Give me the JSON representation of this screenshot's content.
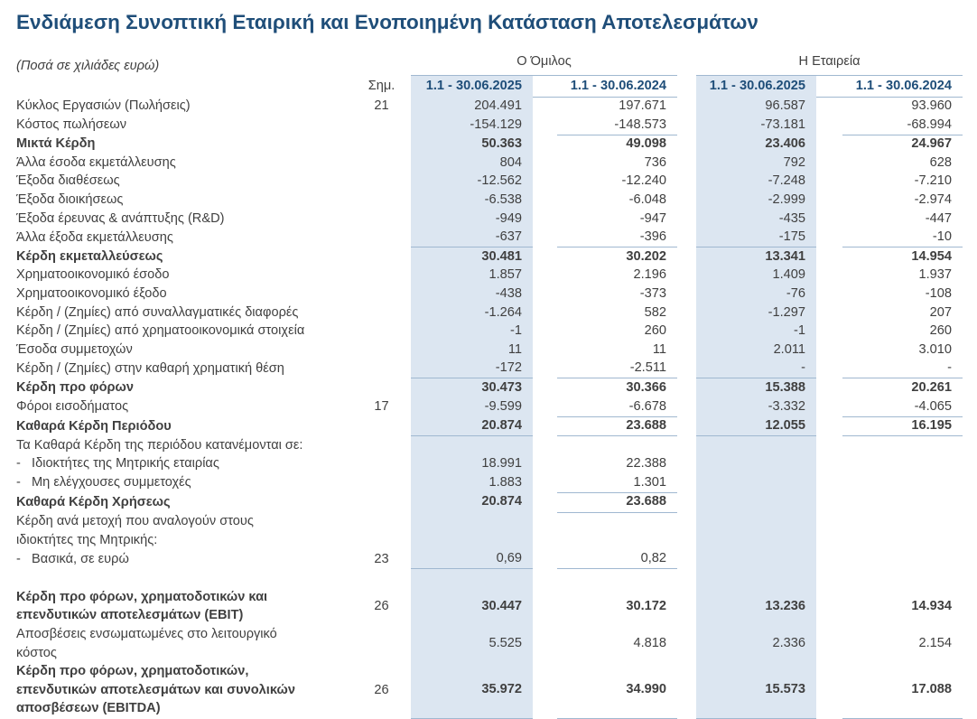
{
  "title": "Ενδιάμεση Συνοπτική Εταιρική και Ενοποιημένη Κατάσταση Αποτελεσμάτων",
  "subtitle": "(Ποσά σε χιλιάδες ευρώ)",
  "colors": {
    "title_navy": "#1F4E79",
    "column_fill_2025": "#DCE6F1",
    "rule_line": "#A0B8D0",
    "body_text": "#404040"
  },
  "table": {
    "group_label": "Ο Όμιλος",
    "company_label": "Η Εταιρεία",
    "header": {
      "note": "Σημ.",
      "group_2025": "1.1 - 30.06.2025",
      "group_2024": "1.1 - 30.06.2024",
      "company_2025": "1.1 - 30.06.2025",
      "company_2024": "1.1 - 30.06.2024"
    },
    "rows": [
      {
        "label": "Κύκλος Εργασιών (Πωλήσεις)",
        "note": "21",
        "values": [
          "204.491",
          "197.671",
          "96.587",
          "93.960"
        ]
      },
      {
        "label": "Κόστος πωλήσεων",
        "values": [
          "-154.129",
          "-148.573",
          "-73.181",
          "-68.994"
        ],
        "rule": "all"
      },
      {
        "label": "Μικτά Κέρδη",
        "bold": true,
        "values": [
          "50.363",
          "49.098",
          "23.406",
          "24.967"
        ]
      },
      {
        "label": "Άλλα έσοδα εκμετάλλευσης",
        "values": [
          "804",
          "736",
          "792",
          "628"
        ]
      },
      {
        "label": "Έξοδα διαθέσεως",
        "values": [
          "-12.562",
          "-12.240",
          "-7.248",
          "-7.210"
        ]
      },
      {
        "label": "Έξοδα διοικήσεως",
        "values": [
          "-6.538",
          "-6.048",
          "-2.999",
          "-2.974"
        ]
      },
      {
        "label": "Έξοδα έρευνας & ανάπτυξης (R&D)",
        "values": [
          "-949",
          "-947",
          "-435",
          "-447"
        ]
      },
      {
        "label": "Άλλα έξοδα εκμετάλλευσης",
        "values": [
          "-637",
          "-396",
          "-175",
          "-10"
        ],
        "rule": "all"
      },
      {
        "label": "Κέρδη εκμεταλλεύσεως",
        "bold": true,
        "values": [
          "30.481",
          "30.202",
          "13.341",
          "14.954"
        ]
      },
      {
        "label": "Χρηματοοικονομικό έσοδο",
        "values": [
          "1.857",
          "2.196",
          "1.409",
          "1.937"
        ]
      },
      {
        "label": "Χρηματοοικονομικό έξοδο",
        "values": [
          "-438",
          "-373",
          "-76",
          "-108"
        ]
      },
      {
        "label": "Κέρδη / (Ζημίες) από συναλλαγματικές διαφορές",
        "values": [
          "-1.264",
          "582",
          "-1.297",
          "207"
        ]
      },
      {
        "label": "Κέρδη / (Ζημίες) από χρηματοοικονομικά στοιχεία",
        "values": [
          "-1",
          "260",
          "-1",
          "260"
        ]
      },
      {
        "label": "Έσοδα συμμετοχών",
        "values": [
          "11",
          "11",
          "2.011",
          "3.010"
        ]
      },
      {
        "label": "Κέρδη / (Ζημίες) στην καθαρή χρηματική θέση",
        "values": [
          "-172",
          "-2.511",
          "-",
          "-"
        ],
        "rule": "all"
      },
      {
        "label": "Κέρδη προ φόρων",
        "bold": true,
        "values": [
          "30.473",
          "30.366",
          "15.388",
          "20.261"
        ]
      },
      {
        "label": "Φόροι εισοδήματος",
        "note": "17",
        "values": [
          "-9.599",
          "-6.678",
          "-3.332",
          "-4.065"
        ],
        "rule": "all"
      },
      {
        "label": "Καθαρά Κέρδη Περιόδου",
        "bold": true,
        "values": [
          "20.874",
          "23.688",
          "12.055",
          "16.195"
        ],
        "rule": "all"
      },
      {
        "label": "Τα Καθαρά Κέρδη της περιόδου κατανέμονται σε:",
        "values": [
          "",
          "",
          "",
          ""
        ]
      },
      {
        "label": "-   Ιδιοκτήτες της Μητρικής εταιρίας",
        "values": [
          "18.991",
          "22.388",
          "",
          ""
        ]
      },
      {
        "label": "-   Μη ελέγχουσες συμμετοχές",
        "values": [
          "1.883",
          "1.301",
          "",
          ""
        ],
        "rule": "group"
      },
      {
        "label": "Καθαρά Κέρδη Χρήσεως",
        "bold": true,
        "values": [
          "20.874",
          "23.688",
          "",
          ""
        ],
        "rule": "group"
      },
      {
        "label": "Κέρδη ανά μετοχή που αναλογούν στους\nιδιοκτήτες της Μητρικής:",
        "values": [
          "",
          "",
          "",
          ""
        ]
      },
      {
        "label": "-   Βασικά, σε ευρώ",
        "note": "23",
        "values": [
          "0,69",
          "0,82",
          "",
          ""
        ],
        "rule": "group"
      },
      {
        "label": "",
        "values": [
          "",
          "",
          "",
          ""
        ],
        "spacer": true
      },
      {
        "label": "Κέρδη προ φόρων, χρηματοδοτικών και\nεπενδυτικών αποτελεσμάτων (EBIT)",
        "bold": true,
        "note": "26",
        "values": [
          "30.447",
          "30.172",
          "13.236",
          "14.934"
        ]
      },
      {
        "label": "Αποσβέσεις ενσωματωμένες στο λειτουργικό\nκόστος",
        "values": [
          "5.525",
          "4.818",
          "2.336",
          "2.154"
        ]
      },
      {
        "label": "Κέρδη προ φόρων, χρηματοδοτικών,\nεπενδυτικών αποτελεσμάτων και συνολικών\nαποσβέσεων (EBITDA)",
        "bold": true,
        "note": "26",
        "values": [
          "35.972",
          "34.990",
          "15.573",
          "17.088"
        ],
        "rule": "all"
      }
    ]
  }
}
